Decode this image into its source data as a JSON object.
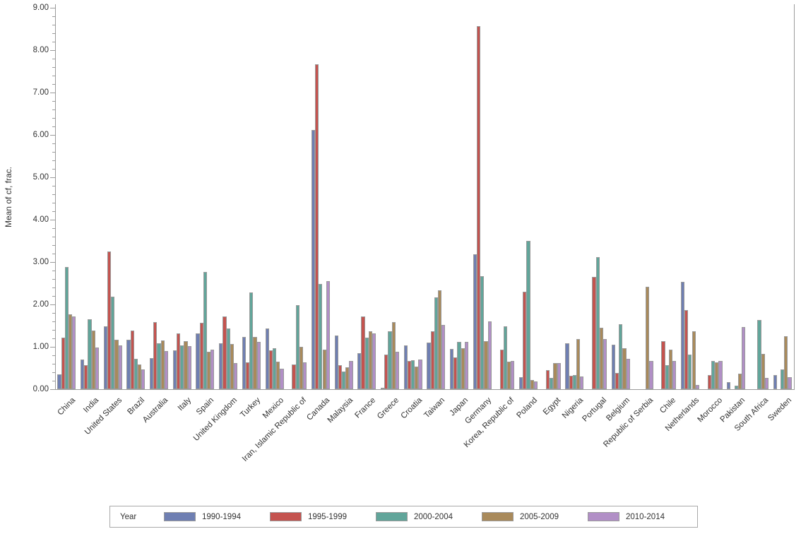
{
  "chart_data": {
    "type": "bar",
    "title": "",
    "xlabel": "",
    "ylabel": "Mean of cf, frac.",
    "ylim": [
      0,
      9
    ],
    "ytick_step": 1,
    "ytick_minor_step": 0.2,
    "ytick_format_decimals": 2,
    "grid": false,
    "legend_title": "Year",
    "legend_position": "bottom",
    "axis_color": "#9b9b9b",
    "bar_outline_color": "#9a9a9a",
    "categories": [
      "China",
      "India",
      "United States",
      "Brazil",
      "Australia",
      "Italy",
      "Spain",
      "United Kingdom",
      "Turkey",
      "Mexico",
      "Iran, Islamic Republic of",
      "Canada",
      "Malaysia",
      "France",
      "Greece",
      "Croatia",
      "Taiwan",
      "Japan",
      "Germany",
      "Korea, Republic of",
      "Poland",
      "Egypt",
      "Nigeria",
      "Portugal",
      "Belgium",
      "Republic of Serbia",
      "Chile",
      "Netherlands",
      "Morocco",
      "Pakistan",
      "South Africa",
      "Sweden"
    ],
    "series": [
      {
        "name": "1990-1994",
        "color": "#6F7FB2",
        "values": [
          0.35,
          0.7,
          1.48,
          1.16,
          0.74,
          0.92,
          1.31,
          1.08,
          1.23,
          1.43,
          0,
          6.12,
          1.26,
          0.85,
          0.03,
          1.04,
          1.1,
          0.95,
          3.19,
          0,
          0.29,
          0,
          1.09,
          0,
          1.05,
          0,
          0,
          2.54,
          0,
          0.16,
          0,
          0.34
        ]
      },
      {
        "name": "1995-1999",
        "color": "#C4534F",
        "values": [
          1.22,
          0.57,
          3.25,
          1.39,
          1.58,
          1.31,
          1.57,
          1.72,
          0.63,
          0.92,
          0.59,
          7.66,
          0.57,
          1.71,
          0.81,
          0.67,
          1.37,
          0.75,
          8.57,
          0.93,
          2.3,
          0.45,
          0.31,
          2.65,
          0.39,
          0,
          1.13,
          1.86,
          0.33,
          0,
          0,
          0
        ]
      },
      {
        "name": "2000-2004",
        "color": "#61A59A",
        "values": [
          2.89,
          1.65,
          2.18,
          0.71,
          1.09,
          1.04,
          2.77,
          1.44,
          2.29,
          0.97,
          1.98,
          2.49,
          0.42,
          1.21,
          1.37,
          0.69,
          2.17,
          1.12,
          2.66,
          1.49,
          3.5,
          0.27,
          0.33,
          3.11,
          1.54,
          0,
          0.57,
          0.81,
          0.66,
          0.08,
          1.64,
          0.46
        ]
      },
      {
        "name": "2005-2009",
        "color": "#A98A5B",
        "values": [
          1.77,
          1.38,
          1.17,
          0.58,
          1.15,
          1.14,
          0.89,
          1.07,
          1.24,
          0.65,
          1.0,
          0.94,
          0.52,
          1.36,
          1.59,
          0.54,
          2.33,
          0.96,
          1.14,
          0.65,
          0.21,
          0.62,
          1.19,
          1.45,
          0.97,
          2.42,
          0.93,
          1.37,
          0.63,
          0.36,
          0.84,
          1.25
        ]
      },
      {
        "name": "2010-2014",
        "color": "#B18FC6",
        "values": [
          1.71,
          0.98,
          1.03,
          0.47,
          0.9,
          1.02,
          0.93,
          0.61,
          1.12,
          0.48,
          0.63,
          2.55,
          0.67,
          1.31,
          0.88,
          0.7,
          1.51,
          1.11,
          1.6,
          0.66,
          0.19,
          0.61,
          0.3,
          1.19,
          0.71,
          0.67,
          0.67,
          0.1,
          0.67,
          1.46,
          0.26,
          0.29
        ]
      }
    ]
  }
}
